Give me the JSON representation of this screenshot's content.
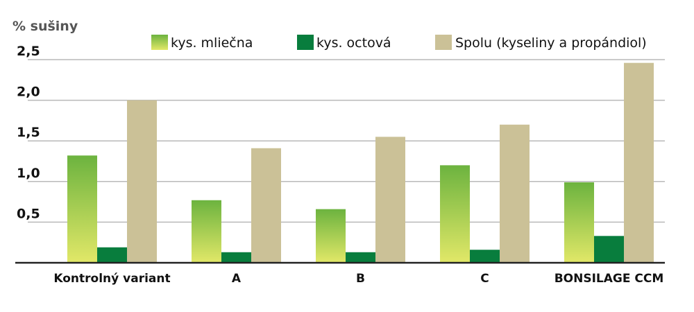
{
  "chart_data": {
    "type": "bar",
    "title": "",
    "ylabel": "% sušiny",
    "xlabel": "",
    "ylim": [
      0,
      2.5
    ],
    "yticks": [
      "0,5",
      "1,0",
      "1,5",
      "2,0",
      "2,5"
    ],
    "ytick_values": [
      0.5,
      1.0,
      1.5,
      2.0,
      2.5
    ],
    "grid": true,
    "legend_position": "top",
    "categories": [
      "Kontrolný variant",
      "A",
      "B",
      "C",
      "BONSILAGE CCM"
    ],
    "series": [
      {
        "name": "kys. mliečna",
        "values": [
          1.32,
          0.77,
          0.66,
          1.2,
          0.99
        ],
        "color_top": "#6cb33f",
        "color_bottom": "#e2e868"
      },
      {
        "name": "kys. octová",
        "values": [
          0.19,
          0.13,
          0.13,
          0.16,
          0.33
        ],
        "color": "#087d3d"
      },
      {
        "name": "Spolu (kyseliny a propándiol)",
        "values": [
          2.0,
          1.41,
          1.55,
          1.7,
          2.46
        ],
        "color": "#cbc197"
      }
    ],
    "colors": {
      "grid": "#b9b9b9",
      "axis": "#222222",
      "text": "#111111",
      "ylabel_text": "#555555"
    }
  }
}
